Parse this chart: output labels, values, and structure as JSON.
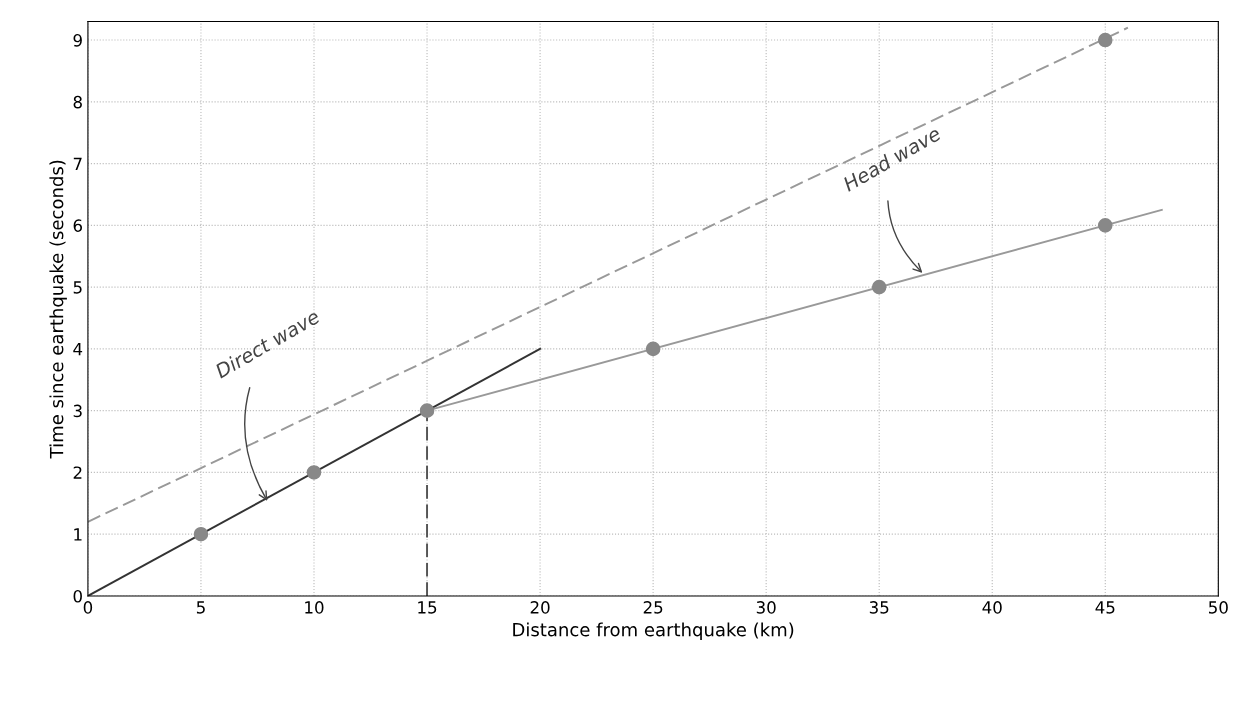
{
  "chart_data": {
    "type": "line",
    "xlabel": "Distance from earthquake (km)",
    "ylabel": "Time since earthquake (seconds)",
    "xlim": [
      0,
      50
    ],
    "xticks": [
      0,
      5,
      10,
      15,
      20,
      25,
      30,
      35,
      40,
      45,
      50
    ],
    "ylim": [
      0,
      9.3
    ],
    "yticks": [
      0,
      1,
      2,
      3,
      4,
      5,
      6,
      7,
      8,
      9
    ],
    "grid": true,
    "series": [
      {
        "color": "#333333",
        "line_style": "solid",
        "x": [
          0,
          20
        ],
        "values": [
          0,
          4
        ]
      },
      {
        "type": "line",
        "color": "#999999",
        "line_style": "solid",
        "x": [
          15,
          47.5
        ],
        "values": [
          3,
          6.25
        ]
      },
      {
        "type": "line",
        "color": "#999999",
        "line_style": "dashed",
        "x": [
          0,
          46
        ],
        "values": [
          1.2,
          9.2
        ]
      },
      {
        "type": "line",
        "color": "#555555",
        "line_style": "dashed",
        "x": [
          15,
          15
        ],
        "values": [
          0,
          3
        ]
      },
      {
        "type": "scatter",
        "color": "#888888",
        "marker": "circle",
        "x": [
          5,
          10,
          15,
          25,
          35,
          45,
          45
        ],
        "values": [
          1,
          2,
          3,
          4,
          5,
          6,
          9
        ]
      }
    ],
    "annotations": [
      {
        "text": "Direct wave",
        "x": 8,
        "y": 1.5
      },
      {
        "text": "Head wave",
        "x": 37,
        "y": 5.2
      }
    ]
  }
}
